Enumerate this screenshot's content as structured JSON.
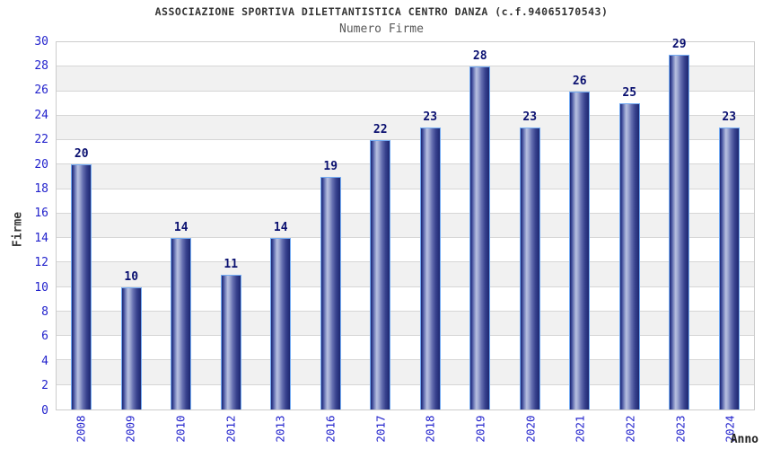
{
  "chart_data": {
    "type": "bar",
    "title": "ASSOCIAZIONE SPORTIVA DILETTANTISTICA CENTRO DANZA (c.f.94065170543)",
    "subtitle": "Numero Firme",
    "xlabel": "Anno",
    "ylabel": "Firme",
    "categories": [
      "2008",
      "2009",
      "2010",
      "2012",
      "2013",
      "2016",
      "2017",
      "2018",
      "2019",
      "2020",
      "2021",
      "2022",
      "2023",
      "2024"
    ],
    "values": [
      20,
      10,
      14,
      11,
      14,
      19,
      22,
      23,
      28,
      23,
      26,
      25,
      29,
      23
    ],
    "ylim": [
      0,
      30
    ],
    "ytick_step": 2,
    "grid": "horizontal-bands",
    "legend": "none",
    "colors": {
      "bar_edge_dark": "#1d2770",
      "bar_mid": "#6872b2",
      "bar_highlight": "#b8c0e0",
      "bar_border": "#74acf4",
      "value_label": "#0a1070",
      "tick_label": "#2222cc",
      "title": "#333333",
      "subtitle": "#595959",
      "axis_label": "#3a3a3a",
      "plot_border": "#cccccc",
      "gridline": "#d6d6d6",
      "band_white": "#ffffff",
      "band_gray": "#f1f1f1",
      "background": "#ffffff"
    }
  }
}
